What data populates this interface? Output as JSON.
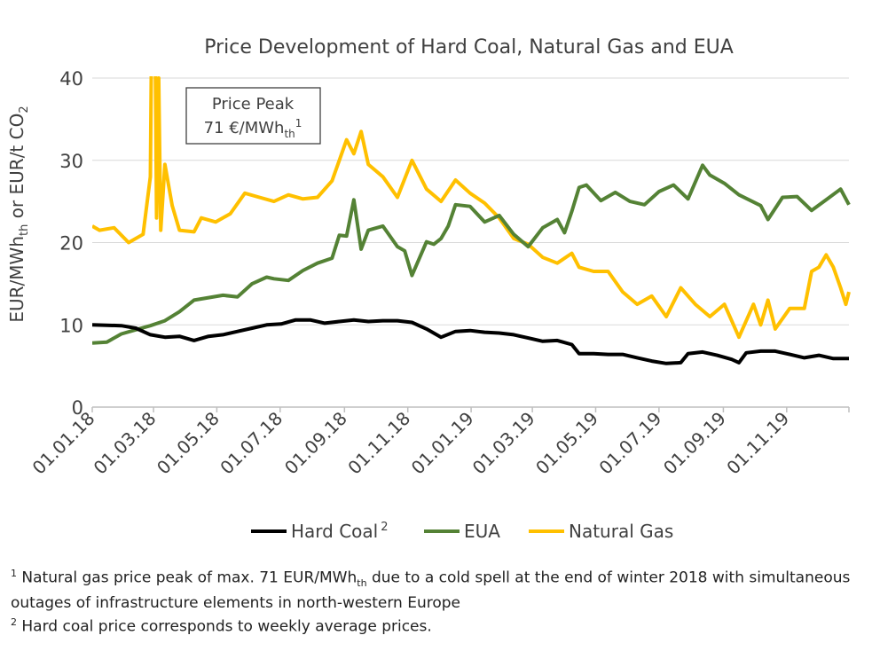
{
  "chart_data": {
    "type": "line",
    "title": "Price Development of Hard Coal, Natural Gas and EUA",
    "ylabel": "EUR/MWh_th or EUR/t CO2",
    "ylim": [
      0,
      40
    ],
    "yticks": [
      0,
      10,
      20,
      30,
      40
    ],
    "xlim": [
      "2018-01-01",
      "2019-12-31"
    ],
    "xticks": [
      "01.01.18",
      "01.03.18",
      "01.05.18",
      "01.07.18",
      "01.09.18",
      "01.11.18",
      "01.01.19",
      "01.03.19",
      "01.05.19",
      "01.07.19",
      "01.09.19",
      "01.11.19"
    ],
    "grid": "horizontal",
    "legend_position": "bottom",
    "annotation": {
      "line1": "Price Peak",
      "line2": "71 €/MWh",
      "sub": "th",
      "sup": "1"
    },
    "series": [
      {
        "name": "Hard Coal",
        "legend_sup": "2",
        "color": "#000000",
        "points": [
          [
            "2018-01-01",
            10.0
          ],
          [
            "2018-01-29",
            9.9
          ],
          [
            "2018-02-12",
            9.6
          ],
          [
            "2018-02-26",
            8.8
          ],
          [
            "2018-03-12",
            8.5
          ],
          [
            "2018-03-26",
            8.6
          ],
          [
            "2018-04-09",
            8.1
          ],
          [
            "2018-04-23",
            8.6
          ],
          [
            "2018-05-07",
            8.8
          ],
          [
            "2018-05-21",
            9.2
          ],
          [
            "2018-06-04",
            9.6
          ],
          [
            "2018-06-18",
            10.0
          ],
          [
            "2018-07-02",
            10.1
          ],
          [
            "2018-07-16",
            10.6
          ],
          [
            "2018-07-30",
            10.6
          ],
          [
            "2018-08-13",
            10.2
          ],
          [
            "2018-08-27",
            10.4
          ],
          [
            "2018-09-10",
            10.6
          ],
          [
            "2018-09-24",
            10.4
          ],
          [
            "2018-10-08",
            10.5
          ],
          [
            "2018-10-22",
            10.5
          ],
          [
            "2018-11-05",
            10.3
          ],
          [
            "2018-11-19",
            9.5
          ],
          [
            "2018-12-03",
            8.5
          ],
          [
            "2018-12-17",
            9.2
          ],
          [
            "2018-12-31",
            9.3
          ],
          [
            "2019-01-14",
            9.1
          ],
          [
            "2019-01-28",
            9.0
          ],
          [
            "2019-02-11",
            8.8
          ],
          [
            "2019-02-25",
            8.4
          ],
          [
            "2019-03-11",
            8.0
          ],
          [
            "2019-03-25",
            8.1
          ],
          [
            "2019-04-08",
            7.6
          ],
          [
            "2019-04-15",
            6.5
          ],
          [
            "2019-04-29",
            6.5
          ],
          [
            "2019-05-13",
            6.4
          ],
          [
            "2019-05-27",
            6.4
          ],
          [
            "2019-06-10",
            6.0
          ],
          [
            "2019-06-24",
            5.6
          ],
          [
            "2019-07-08",
            5.3
          ],
          [
            "2019-07-22",
            5.4
          ],
          [
            "2019-07-29",
            6.5
          ],
          [
            "2019-08-12",
            6.7
          ],
          [
            "2019-08-26",
            6.3
          ],
          [
            "2019-09-09",
            5.8
          ],
          [
            "2019-09-16",
            5.4
          ],
          [
            "2019-09-23",
            6.6
          ],
          [
            "2019-10-07",
            6.8
          ],
          [
            "2019-10-21",
            6.8
          ],
          [
            "2019-11-04",
            6.4
          ],
          [
            "2019-11-18",
            6.0
          ],
          [
            "2019-12-02",
            6.3
          ],
          [
            "2019-12-16",
            5.9
          ],
          [
            "2019-12-31",
            5.9
          ]
        ]
      },
      {
        "name": "EUA",
        "color": "#548235",
        "points": [
          [
            "2018-01-01",
            7.8
          ],
          [
            "2018-01-15",
            7.9
          ],
          [
            "2018-01-29",
            8.9
          ],
          [
            "2018-02-12",
            9.4
          ],
          [
            "2018-02-26",
            9.9
          ],
          [
            "2018-03-12",
            10.5
          ],
          [
            "2018-03-26",
            11.6
          ],
          [
            "2018-04-09",
            13.0
          ],
          [
            "2018-04-23",
            13.3
          ],
          [
            "2018-05-07",
            13.6
          ],
          [
            "2018-05-21",
            13.4
          ],
          [
            "2018-06-04",
            15.0
          ],
          [
            "2018-06-18",
            15.8
          ],
          [
            "2018-06-25",
            15.6
          ],
          [
            "2018-07-09",
            15.4
          ],
          [
            "2018-07-23",
            16.6
          ],
          [
            "2018-08-06",
            17.5
          ],
          [
            "2018-08-20",
            18.1
          ],
          [
            "2018-08-27",
            20.9
          ],
          [
            "2018-09-03",
            20.8
          ],
          [
            "2018-09-10",
            25.2
          ],
          [
            "2018-09-17",
            19.2
          ],
          [
            "2018-09-24",
            21.5
          ],
          [
            "2018-10-08",
            22.0
          ],
          [
            "2018-10-22",
            19.5
          ],
          [
            "2018-10-29",
            19.0
          ],
          [
            "2018-11-05",
            16.0
          ],
          [
            "2018-11-19",
            20.1
          ],
          [
            "2018-11-26",
            19.8
          ],
          [
            "2018-12-03",
            20.5
          ],
          [
            "2018-12-10",
            22.0
          ],
          [
            "2018-12-17",
            24.6
          ],
          [
            "2018-12-31",
            24.4
          ],
          [
            "2019-01-14",
            22.5
          ],
          [
            "2019-01-28",
            23.3
          ],
          [
            "2019-02-11",
            21.0
          ],
          [
            "2019-02-25",
            19.5
          ],
          [
            "2019-03-11",
            21.8
          ],
          [
            "2019-03-25",
            22.8
          ],
          [
            "2019-04-01",
            21.2
          ],
          [
            "2019-04-08",
            23.8
          ],
          [
            "2019-04-15",
            26.7
          ],
          [
            "2019-04-22",
            27.0
          ],
          [
            "2019-05-06",
            25.1
          ],
          [
            "2019-05-20",
            26.1
          ],
          [
            "2019-06-03",
            25.0
          ],
          [
            "2019-06-17",
            24.6
          ],
          [
            "2019-07-01",
            26.2
          ],
          [
            "2019-07-15",
            27.0
          ],
          [
            "2019-07-29",
            25.3
          ],
          [
            "2019-08-12",
            29.4
          ],
          [
            "2019-08-19",
            28.2
          ],
          [
            "2019-09-02",
            27.2
          ],
          [
            "2019-09-16",
            25.8
          ],
          [
            "2019-10-07",
            24.5
          ],
          [
            "2019-10-14",
            22.8
          ],
          [
            "2019-10-28",
            25.5
          ],
          [
            "2019-11-11",
            25.6
          ],
          [
            "2019-11-25",
            23.9
          ],
          [
            "2019-12-09",
            25.2
          ],
          [
            "2019-12-23",
            26.5
          ],
          [
            "2019-12-31",
            24.6
          ]
        ]
      },
      {
        "name": "Natural Gas",
        "color": "#FFC000",
        "points": [
          [
            "2018-01-01",
            22.0
          ],
          [
            "2018-01-08",
            21.5
          ],
          [
            "2018-01-22",
            21.8
          ],
          [
            "2018-02-05",
            20.0
          ],
          [
            "2018-02-19",
            21.0
          ],
          [
            "2018-02-26",
            28.0
          ],
          [
            "2018-03-01",
            71.0
          ],
          [
            "2018-03-04",
            23.0
          ],
          [
            "2018-03-06",
            40.0
          ],
          [
            "2018-03-08",
            21.5
          ],
          [
            "2018-03-12",
            29.5
          ],
          [
            "2018-03-19",
            24.5
          ],
          [
            "2018-03-26",
            21.5
          ],
          [
            "2018-04-09",
            21.3
          ],
          [
            "2018-04-16",
            23.0
          ],
          [
            "2018-04-30",
            22.5
          ],
          [
            "2018-05-14",
            23.5
          ],
          [
            "2018-05-28",
            26.0
          ],
          [
            "2018-06-11",
            25.5
          ],
          [
            "2018-06-25",
            25.0
          ],
          [
            "2018-07-09",
            25.8
          ],
          [
            "2018-07-23",
            25.3
          ],
          [
            "2018-08-06",
            25.5
          ],
          [
            "2018-08-20",
            27.5
          ],
          [
            "2018-08-27",
            30.0
          ],
          [
            "2018-09-03",
            32.5
          ],
          [
            "2018-09-10",
            30.8
          ],
          [
            "2018-09-17",
            33.5
          ],
          [
            "2018-09-24",
            29.5
          ],
          [
            "2018-10-08",
            28.0
          ],
          [
            "2018-10-22",
            25.5
          ],
          [
            "2018-11-05",
            30.0
          ],
          [
            "2018-11-19",
            26.5
          ],
          [
            "2018-12-03",
            25.0
          ],
          [
            "2018-12-17",
            27.6
          ],
          [
            "2018-12-31",
            26.0
          ],
          [
            "2019-01-14",
            24.8
          ],
          [
            "2019-01-28",
            23.0
          ],
          [
            "2019-02-11",
            20.5
          ],
          [
            "2019-02-25",
            19.8
          ],
          [
            "2019-03-11",
            18.2
          ],
          [
            "2019-03-25",
            17.5
          ],
          [
            "2019-04-08",
            18.7
          ],
          [
            "2019-04-15",
            17.0
          ],
          [
            "2019-04-29",
            16.5
          ],
          [
            "2019-05-13",
            16.5
          ],
          [
            "2019-05-27",
            14.0
          ],
          [
            "2019-06-10",
            12.5
          ],
          [
            "2019-06-24",
            13.5
          ],
          [
            "2019-07-08",
            11.0
          ],
          [
            "2019-07-22",
            14.5
          ],
          [
            "2019-08-05",
            12.5
          ],
          [
            "2019-08-19",
            11.0
          ],
          [
            "2019-09-02",
            12.5
          ],
          [
            "2019-09-09",
            10.5
          ],
          [
            "2019-09-16",
            8.5
          ],
          [
            "2019-09-30",
            12.5
          ],
          [
            "2019-10-07",
            10.0
          ],
          [
            "2019-10-14",
            13.0
          ],
          [
            "2019-10-21",
            9.5
          ],
          [
            "2019-11-04",
            12.0
          ],
          [
            "2019-11-18",
            12.0
          ],
          [
            "2019-11-25",
            16.5
          ],
          [
            "2019-12-02",
            17.0
          ],
          [
            "2019-12-09",
            18.5
          ],
          [
            "2019-12-16",
            17.0
          ],
          [
            "2019-12-23",
            14.5
          ],
          [
            "2019-12-28",
            12.5
          ],
          [
            "2019-12-31",
            14.0
          ]
        ]
      }
    ]
  },
  "footnotes": {
    "note1_sup": "1",
    "note1_a": " Natural gas price peak of max. 71 EUR/MWh",
    "note1_sub": "th",
    "note1_b": " due to a cold spell at the end of winter 2018 with simultaneous outages of infrastructure elements in north-western Europe",
    "note2_sup": "2",
    "note2": " Hard coal price corresponds to weekly average prices."
  }
}
